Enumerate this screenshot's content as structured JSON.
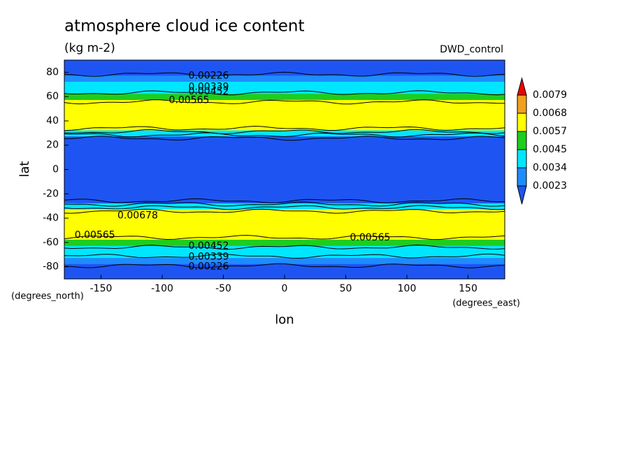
{
  "chart_data": {
    "type": "contour",
    "title": "atmosphere cloud ice content",
    "subtitle": "(kg m-2)",
    "experiment": "DWD_control",
    "x_label": "lon",
    "y_label": "lat",
    "x_units": "(degrees_east)",
    "y_units": "(degrees_north)",
    "xlim": [
      -180,
      180
    ],
    "xticks": [
      -150,
      -100,
      -50,
      0,
      50,
      100,
      150
    ],
    "ylim": [
      -90,
      90
    ],
    "yticks": [
      -80,
      -60,
      -40,
      -20,
      0,
      20,
      40,
      60,
      80
    ],
    "lat": [
      -90,
      -85,
      -80,
      -75,
      -70,
      -65,
      -60,
      -55,
      -50,
      -45,
      -40,
      -35,
      -30,
      -25,
      -20,
      -15,
      -10,
      -5,
      0,
      5,
      10,
      15,
      20,
      25,
      30,
      35,
      40,
      45,
      50,
      55,
      60,
      65,
      70,
      75,
      80,
      85,
      90
    ],
    "values": [
      0.0015,
      0.0018,
      0.0022,
      0.0028,
      0.0036,
      0.0043,
      0.0052,
      0.0058,
      0.0062,
      0.0065,
      0.0066,
      0.006,
      0.004,
      0.002,
      0.0018,
      0.0017,
      0.0017,
      0.0018,
      0.002,
      0.0018,
      0.0017,
      0.0017,
      0.0018,
      0.002,
      0.004,
      0.0062,
      0.0064,
      0.0066,
      0.0062,
      0.0058,
      0.005,
      0.0042,
      0.0034,
      0.0027,
      0.0021,
      0.0017,
      0.0015
    ],
    "levels": [
      0.0023,
      0.0034,
      0.0045,
      0.0057,
      0.0068,
      0.0079
    ],
    "colors": [
      "#1e55f2",
      "#1e8cff",
      "#00e6ff",
      "#1ecd1e",
      "#ffff00",
      "#f0a01e",
      "#f00000"
    ],
    "contour_labels": [
      {
        "value": 0.00226,
        "lon": -62,
        "lat": 77
      },
      {
        "value": 0.00339,
        "lon": -62,
        "lat": 68
      },
      {
        "value": 0.00452,
        "lon": -62,
        "lat": 64
      },
      {
        "value": 0.00565,
        "lon": -78,
        "lat": 57
      },
      {
        "value": 0.00678,
        "lon": -120,
        "lat": -38
      },
      {
        "value": 0.00565,
        "lon": -155,
        "lat": -54
      },
      {
        "value": 0.00565,
        "lon": 70,
        "lat": -56
      },
      {
        "value": 0.00452,
        "lon": -62,
        "lat": -63
      },
      {
        "value": 0.00339,
        "lon": -62,
        "lat": -72
      },
      {
        "value": 0.00226,
        "lon": -62,
        "lat": -80
      }
    ]
  }
}
